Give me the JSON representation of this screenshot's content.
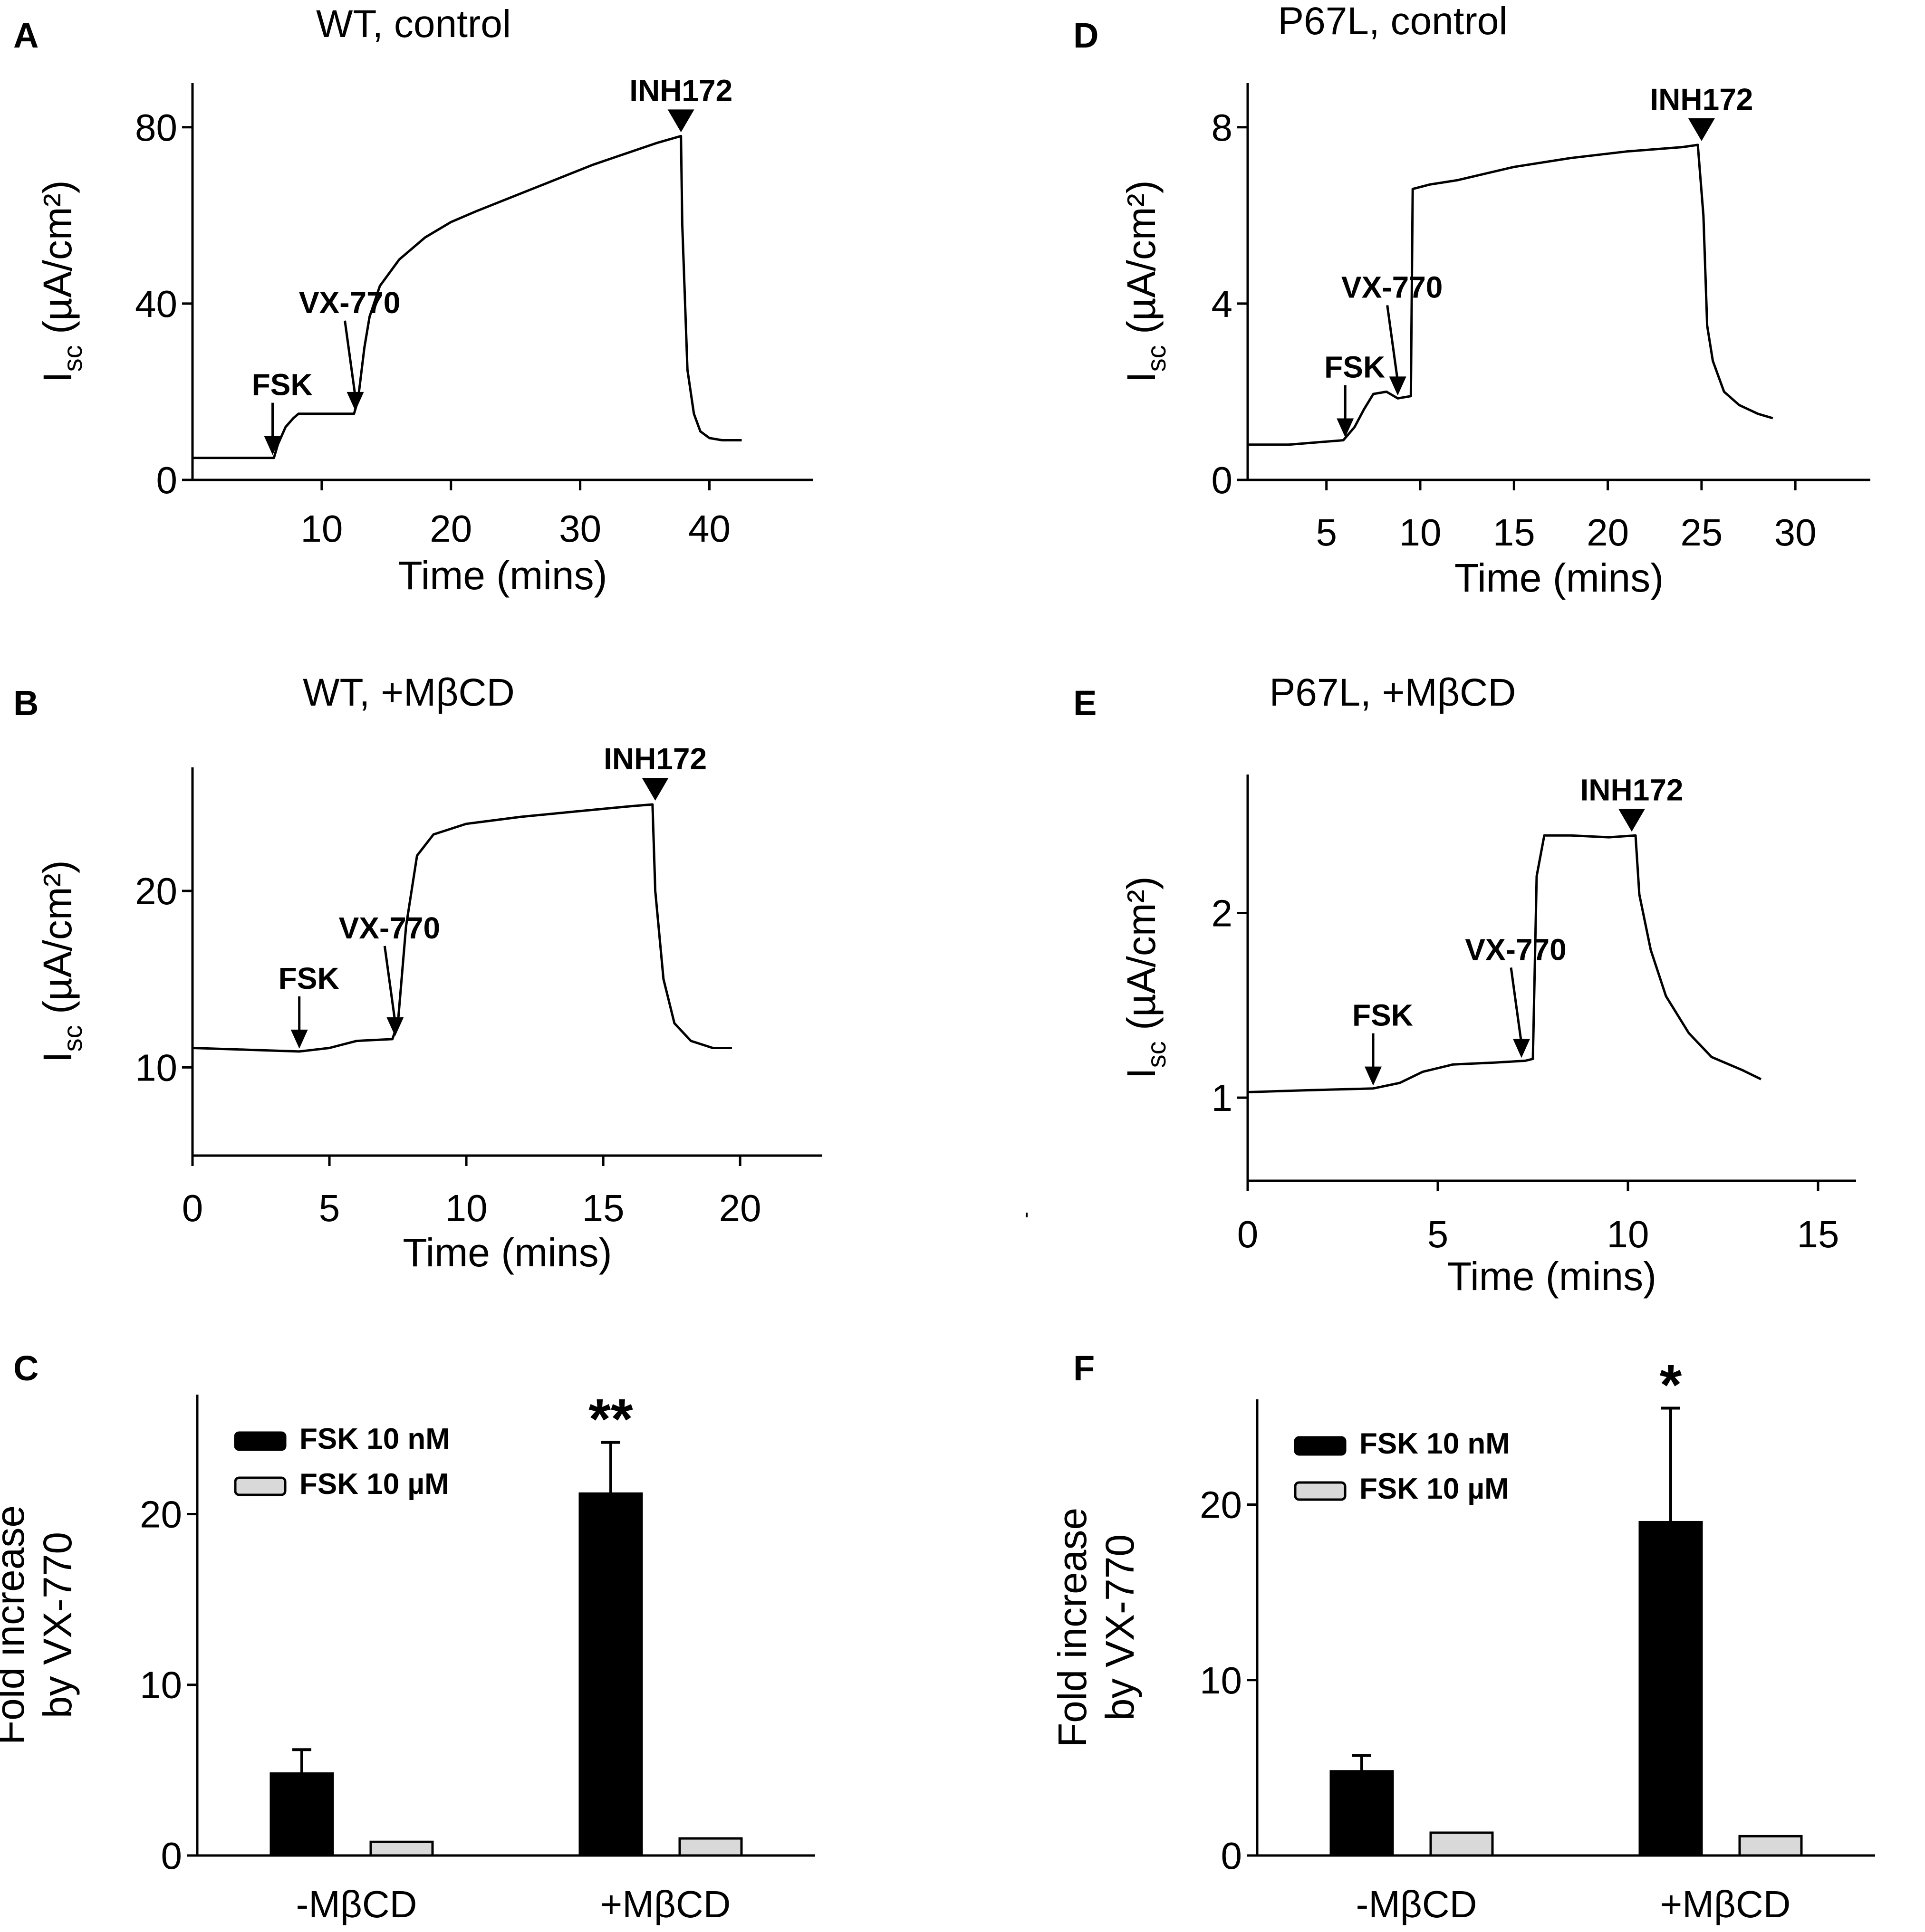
{
  "colors": {
    "ink": "#000000",
    "bar_dark": "#000000",
    "bar_light": "#d9d9d9",
    "background": "#ffffff"
  },
  "chart_data": [
    {
      "panel": "A",
      "type": "line",
      "title": "WT, control",
      "xlabel": "Time (mins)",
      "ylabel_main": "I",
      "ylabel_sub": "sc",
      "ylabel_unit": " (µA/cm²)",
      "xlim": [
        0,
        48
      ],
      "ylim": [
        0,
        90
      ],
      "xticks": [
        10,
        20,
        30,
        40
      ],
      "xtick_labels": [
        "10",
        "20",
        "30",
        "40"
      ],
      "yticks": [
        0,
        40,
        80
      ],
      "ytick_labels": [
        "0",
        "40",
        "80"
      ],
      "series": [
        {
          "name": "Isc",
          "x": [
            0,
            6.3,
            6.6,
            7.2,
            7.8,
            8.2,
            12.5,
            12.8,
            13.3,
            13.7,
            14.5,
            16,
            18,
            20,
            22,
            25,
            28,
            31,
            34,
            36,
            37.2,
            37.8,
            37.9,
            38.3,
            38.8,
            39.3,
            40,
            41,
            42.5
          ],
          "y": [
            5,
            5,
            8,
            12,
            14,
            15,
            15,
            18,
            30,
            37,
            44,
            50,
            55,
            58.5,
            61,
            64.5,
            68,
            71.5,
            74.5,
            76.5,
            77.5,
            78,
            58,
            25,
            15,
            11,
            9.5,
            9,
            9
          ]
        }
      ],
      "annotations": [
        {
          "label": "FSK",
          "x": 6.2,
          "y": 5,
          "style": "arrow"
        },
        {
          "label": "VX-770",
          "x": 12.6,
          "y": 15,
          "style": "arrow"
        },
        {
          "label": "INH172",
          "x": 37.8,
          "y": 78,
          "style": "triangle"
        }
      ]
    },
    {
      "panel": "B",
      "type": "line",
      "title": "WT, +MβCD",
      "xlabel": "Time (mins)",
      "ylabel_main": "I",
      "ylabel_sub": "sc",
      "ylabel_unit": " (µA/cm²)",
      "xlim": [
        0,
        23
      ],
      "ylim": [
        5,
        27
      ],
      "xticks": [
        0,
        5,
        10,
        15,
        20
      ],
      "xtick_labels": [
        "0",
        "5",
        "10",
        "15",
        "20"
      ],
      "yticks": [
        10,
        20
      ],
      "ytick_labels": [
        "10",
        "20"
      ],
      "series": [
        {
          "name": "Isc",
          "x": [
            0,
            2,
            3.9,
            5,
            6,
            7.3,
            7.5,
            7.8,
            8.2,
            8.8,
            10,
            12,
            14,
            16,
            16.8,
            16.9,
            17.2,
            17.6,
            18.2,
            19,
            19.7
          ],
          "y": [
            11.1,
            11.0,
            10.9,
            11.1,
            11.5,
            11.6,
            12.5,
            18,
            22,
            23.2,
            23.8,
            24.2,
            24.5,
            24.8,
            24.9,
            20,
            15,
            12.5,
            11.5,
            11.1,
            11.1
          ]
        }
      ],
      "annotations": [
        {
          "label": "FSK",
          "x": 3.9,
          "y": 10.9,
          "style": "arrow"
        },
        {
          "label": "VX-770",
          "x": 7.4,
          "y": 11.6,
          "style": "arrow"
        },
        {
          "label": "INH172",
          "x": 16.9,
          "y": 24.9,
          "style": "triangle"
        }
      ]
    },
    {
      "panel": "C",
      "type": "bar",
      "ylabel_lines": [
        "Fold increase",
        "by VX-770"
      ],
      "categories": [
        "-MβCD",
        "+MβCD"
      ],
      "ylim": [
        0,
        27
      ],
      "yticks": [
        0,
        10,
        20
      ],
      "ytick_labels": [
        "0",
        "10",
        "20"
      ],
      "series": [
        {
          "name": "FSK 10 nM",
          "values": [
            4.8,
            21.2
          ],
          "errors": [
            1.4,
            3.0
          ]
        },
        {
          "name": "FSK 10 µM",
          "values": [
            0.8,
            1.0
          ],
          "errors": [
            0.15,
            0.1
          ]
        }
      ],
      "significance": [
        "",
        "**"
      ],
      "legend_position": "top-left"
    },
    {
      "panel": "D",
      "type": "line",
      "title": "P67L, control",
      "xlabel": "Time (mins)",
      "ylabel_main": "I",
      "ylabel_sub": "sc",
      "ylabel_unit": " (µA/cm²)",
      "xlim": [
        0.8,
        34
      ],
      "ylim": [
        0,
        9
      ],
      "xticks": [
        5,
        10,
        15,
        20,
        25,
        30
      ],
      "xtick_labels": [
        "5",
        "10",
        "15",
        "20",
        "25",
        "30"
      ],
      "yticks": [
        0,
        4,
        8
      ],
      "ytick_labels": [
        "0",
        "4",
        "8"
      ],
      "series": [
        {
          "name": "Isc",
          "x": [
            0.8,
            3,
            5.9,
            6.5,
            7,
            7.5,
            8.2,
            8.8,
            9.5,
            9.6,
            10.5,
            12,
            15,
            18,
            21,
            24,
            24.8,
            25.1,
            25.3,
            25.6,
            26.2,
            27,
            28,
            28.8
          ],
          "y": [
            0.8,
            0.8,
            0.9,
            1.2,
            1.6,
            1.95,
            2.0,
            1.85,
            1.9,
            6.6,
            6.7,
            6.8,
            7.1,
            7.3,
            7.45,
            7.55,
            7.6,
            6.0,
            3.5,
            2.7,
            2.0,
            1.7,
            1.5,
            1.4
          ]
        }
      ],
      "annotations": [
        {
          "label": "FSK",
          "x": 6.0,
          "y": 0.9,
          "style": "arrow"
        },
        {
          "label": "VX-770",
          "x": 8.8,
          "y": 1.85,
          "style": "arrow"
        },
        {
          "label": "INH172",
          "x": 25.0,
          "y": 7.6,
          "style": "triangle"
        }
      ]
    },
    {
      "panel": "E",
      "type": "line",
      "title": "P67L, +MβCD",
      "xlabel": "Time (mins)",
      "ylabel_main": "I",
      "ylabel_sub": "sc",
      "ylabel_unit": " (µA/cm²)",
      "xlim": [
        0,
        16
      ],
      "ylim": [
        0.55,
        2.75
      ],
      "xticks": [
        0,
        5,
        10,
        15
      ],
      "xtick_labels": [
        "0",
        "5",
        "10",
        "15"
      ],
      "yticks": [
        1,
        2
      ],
      "ytick_labels": [
        "1",
        "2"
      ],
      "series": [
        {
          "name": "Isc",
          "x": [
            0,
            1.5,
            3.3,
            4,
            4.6,
            5.4,
            6.5,
            7.3,
            7.5,
            7.6,
            7.8,
            8.5,
            9.5,
            10.2,
            10.3,
            10.6,
            11,
            11.6,
            12.2,
            13,
            13.5
          ],
          "y": [
            1.03,
            1.04,
            1.05,
            1.08,
            1.14,
            1.18,
            1.19,
            1.2,
            1.21,
            2.2,
            2.42,
            2.42,
            2.41,
            2.42,
            2.1,
            1.8,
            1.55,
            1.35,
            1.22,
            1.15,
            1.1
          ]
        }
      ],
      "annotations": [
        {
          "label": "FSK",
          "x": 3.3,
          "y": 1.05,
          "style": "arrow"
        },
        {
          "label": "VX-770",
          "x": 7.2,
          "y": 1.2,
          "style": "arrow"
        },
        {
          "label": "INH172",
          "x": 10.1,
          "y": 2.42,
          "style": "triangle"
        }
      ]
    },
    {
      "panel": "F",
      "type": "bar",
      "ylabel_lines": [
        "Fold increase",
        "by VX-770"
      ],
      "categories": [
        "-MβCD",
        "+MβCD"
      ],
      "ylim": [
        0,
        26
      ],
      "yticks": [
        0,
        10,
        20
      ],
      "ytick_labels": [
        "0",
        "10",
        "20"
      ],
      "series": [
        {
          "name": "FSK 10 nM",
          "values": [
            4.8,
            19.0
          ],
          "errors": [
            0.9,
            6.5
          ]
        },
        {
          "name": "FSK 10 µM",
          "values": [
            1.3,
            1.1
          ],
          "errors": [
            0.1,
            0.1
          ]
        }
      ],
      "significance": [
        "",
        "*"
      ],
      "legend_position": "top-left"
    }
  ]
}
